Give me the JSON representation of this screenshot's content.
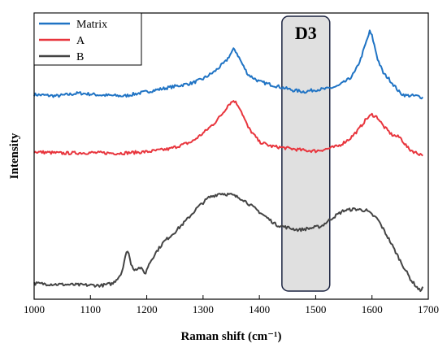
{
  "chart_data": {
    "type": "line",
    "xlabel": "Raman shift (cm⁻¹)",
    "ylabel": "Intensity",
    "xlim": [
      1000,
      1700
    ],
    "ylim": [
      0,
      100
    ],
    "x_ticks": [
      "1000",
      "1100",
      "1200",
      "1300",
      "1400",
      "1500",
      "1600",
      "1700"
    ],
    "legend_position": "top-left",
    "grid": false,
    "annotation": {
      "label": "D3",
      "x_range": [
        1440,
        1525
      ]
    },
    "series": [
      {
        "name": "Matrix",
        "color": "#1f73c4",
        "x": [
          1000,
          1040,
          1080,
          1120,
          1160,
          1200,
          1240,
          1280,
          1300,
          1320,
          1340,
          1350,
          1355,
          1360,
          1370,
          1380,
          1400,
          1420,
          1440,
          1460,
          1480,
          1500,
          1520,
          1540,
          1560,
          1570,
          1580,
          1590,
          1596,
          1600,
          1610,
          1620,
          1630,
          1640,
          1650,
          1660,
          1680,
          1690
        ],
        "y": [
          71.5,
          71.0,
          72.0,
          71.3,
          71.0,
          72.5,
          74.0,
          75.5,
          77.0,
          79.5,
          83.0,
          86.0,
          87.5,
          86.0,
          82.0,
          78.5,
          76.0,
          75.0,
          74.0,
          73.0,
          72.5,
          73.2,
          73.5,
          74.5,
          77.0,
          79.5,
          84.0,
          90.0,
          93.5,
          92.0,
          84.0,
          79.0,
          77.0,
          74.5,
          72.0,
          71.2,
          71.0,
          70.5
        ]
      },
      {
        "name": "A",
        "color": "#e8353d",
        "x": [
          1000,
          1050,
          1100,
          1150,
          1200,
          1240,
          1280,
          1300,
          1320,
          1335,
          1345,
          1355,
          1365,
          1380,
          1400,
          1420,
          1440,
          1460,
          1480,
          1500,
          1520,
          1540,
          1560,
          1575,
          1590,
          1600,
          1610,
          1620,
          1635,
          1650,
          1665,
          1680,
          1690
        ],
        "y": [
          51.5,
          51.0,
          51.2,
          51.0,
          51.5,
          52.5,
          55.0,
          58.0,
          61.5,
          65.0,
          68.0,
          69.5,
          67.0,
          60.0,
          55.0,
          53.5,
          53.0,
          52.5,
          52.0,
          51.8,
          52.5,
          53.5,
          56.0,
          59.0,
          63.0,
          64.5,
          63.5,
          60.5,
          57.5,
          56.5,
          52.5,
          51.0,
          50.5
        ]
      },
      {
        "name": "B",
        "color": "#444444",
        "x": [
          1000,
          1040,
          1080,
          1120,
          1140,
          1155,
          1163,
          1168,
          1172,
          1178,
          1188,
          1198,
          1203,
          1215,
          1230,
          1250,
          1270,
          1290,
          1310,
          1330,
          1350,
          1370,
          1390,
          1410,
          1430,
          1450,
          1470,
          1490,
          1510,
          1530,
          1550,
          1570,
          1590,
          1610,
          1630,
          1650,
          1670,
          1685,
          1690
        ],
        "y": [
          5.5,
          5.2,
          5.0,
          4.8,
          5.5,
          9.0,
          16.0,
          16.5,
          12.0,
          10.5,
          11.0,
          9.0,
          12.0,
          16.0,
          20.0,
          23.5,
          27.5,
          32.0,
          35.5,
          37.0,
          36.5,
          35.0,
          32.0,
          29.0,
          26.0,
          25.0,
          24.2,
          24.8,
          25.5,
          28.5,
          31.0,
          31.5,
          31.0,
          28.0,
          21.0,
          13.5,
          6.5,
          3.0,
          4.0
        ]
      }
    ]
  }
}
